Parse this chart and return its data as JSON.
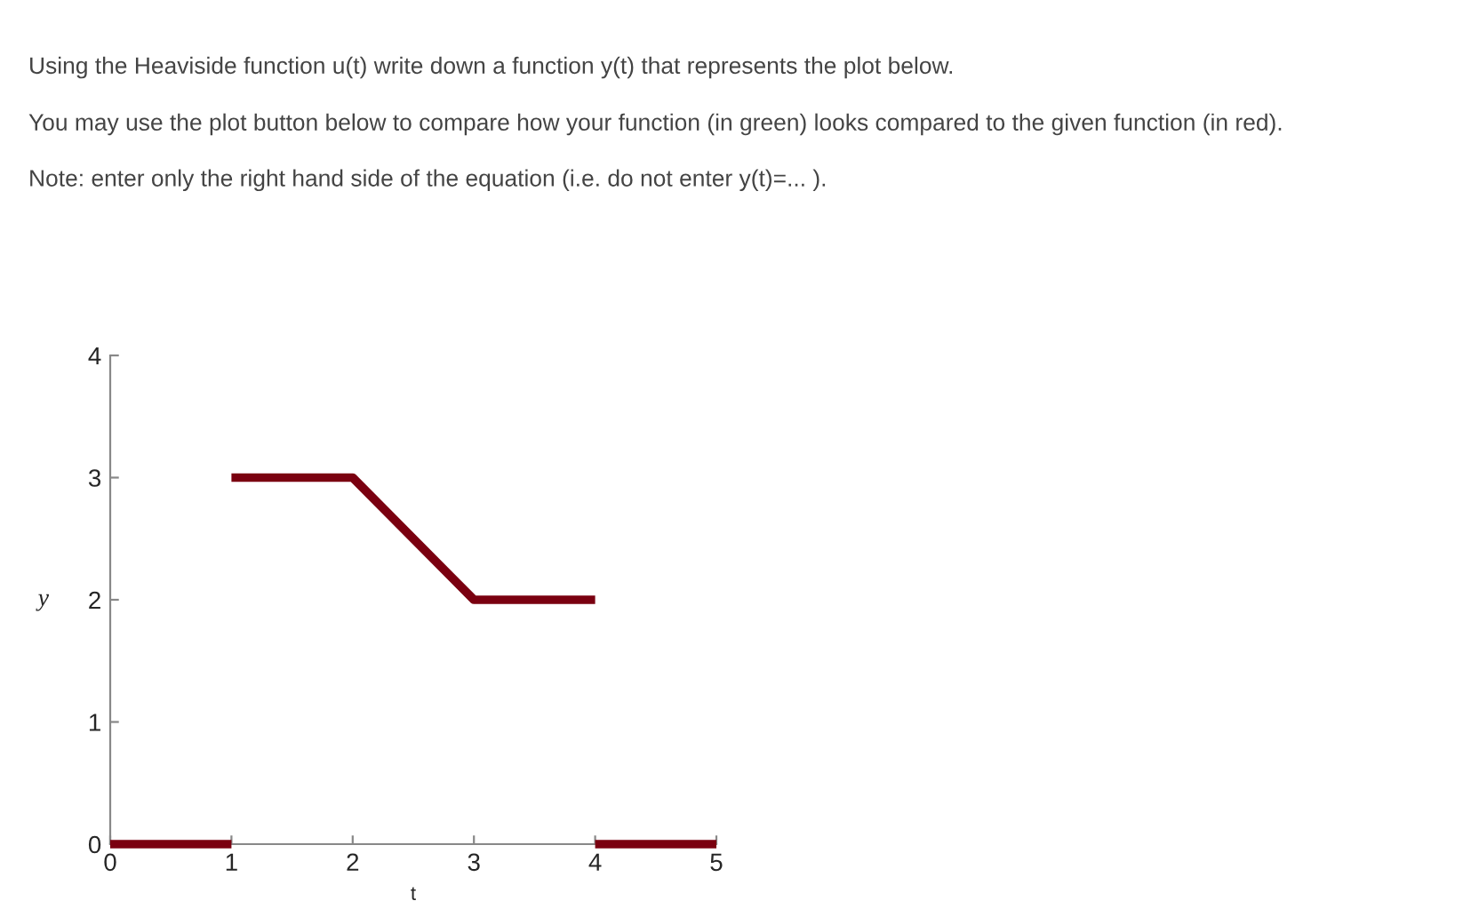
{
  "chart_data": {
    "type": "line",
    "xlabel": "t",
    "ylabel": "y",
    "annotations": [
      "Using the Heaviside function u(t) write down a function y(t) that represents the plot below.",
      "You may use the plot button below to compare how your function (in green) looks compared to the given function (in red).",
      "Note: enter only the right hand side of the equation (i.e. do not enter y(t)=... )."
    ],
    "series": [
      {
        "color": "#7a0010",
        "x": [
          0,
          1
        ],
        "values": [
          0,
          0
        ]
      },
      {
        "color": "#7a0010",
        "x": [
          1,
          2,
          3,
          4
        ],
        "values": [
          3,
          3,
          2,
          2
        ]
      },
      {
        "color": "#7a0010",
        "x": [
          4,
          5
        ],
        "values": [
          0,
          0
        ]
      }
    ],
    "xlim": [
      0,
      5
    ],
    "ylim": [
      0,
      4
    ],
    "xticks": [
      0,
      1,
      2,
      3,
      4,
      5
    ],
    "yticks": [
      0,
      1,
      2,
      3,
      4
    ],
    "grid": false,
    "legend": false,
    "marker": "none",
    "line_style": "solid"
  }
}
